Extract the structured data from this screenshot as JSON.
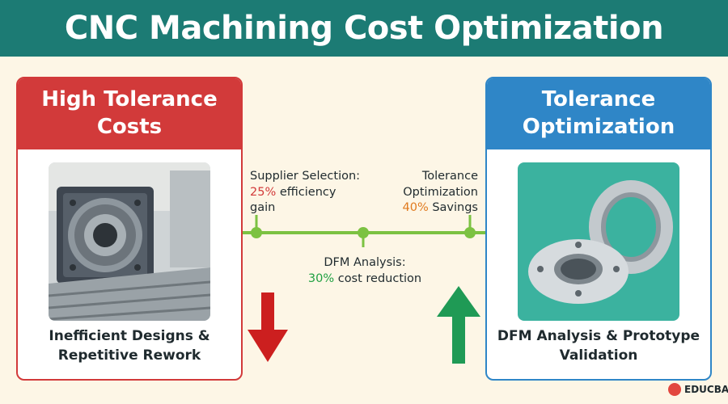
{
  "title": "CNC Machining Cost Optimization",
  "left_card": {
    "heading": "High Tolerance Costs",
    "caption": "Inefficient Designs & Repetitive Rework",
    "image": "cnc-machine-chuck",
    "accent": "#d23a3a"
  },
  "right_card": {
    "heading": "Tolerance Optimization",
    "caption": "DFM Analysis & Prototype Validation",
    "image": "machined-metal-rings",
    "accent": "#2f86c7"
  },
  "milestones": [
    {
      "title": "Supplier Selection:",
      "value": "25%",
      "rest": " efficiency",
      "rest2": "gain",
      "color": "#d23a3a"
    },
    {
      "title": "DFM Analysis:",
      "value": "30%",
      "rest": " cost reduction",
      "color": "#20a042"
    },
    {
      "title": "Tolerance",
      "title2": "Optimization",
      "value": "40%",
      "rest": " Savings",
      "color": "#e07a1e"
    }
  ],
  "arrows": {
    "down": "down-arrow-icon",
    "up": "up-arrow-icon",
    "down_color": "#cc1f1f",
    "up_color": "#1f9a55"
  },
  "timeline_color": "#7cc242",
  "brand": "EDUCBA",
  "banner_color": "#1c7b74"
}
